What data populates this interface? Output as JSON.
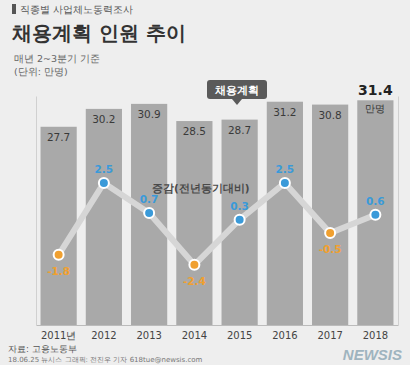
{
  "chart_data": {
    "type": "bar",
    "subtitle": "직종별 사업체노동력조사",
    "title": "채용계획 인원 추이",
    "notes": [
      "매년 2~3분기 기준",
      "(단위: 만명)"
    ],
    "categories": [
      "2011년",
      "2012",
      "2013",
      "2014",
      "2015",
      "2016",
      "2017",
      "2018"
    ],
    "series": [
      {
        "name": "채용계획",
        "type": "bar",
        "color": "#a9a9a9",
        "values": [
          27.7,
          30.2,
          30.9,
          28.5,
          28.7,
          31.2,
          30.8,
          31.4
        ]
      },
      {
        "name": "증감(전년동기대비)",
        "type": "line",
        "axis": "y2",
        "color": "#d6d6d6",
        "marker": "circle",
        "colors": [
          "#f0a030",
          "#3a9ad9",
          "#3a9ad9",
          "#f0a030",
          "#3a9ad9",
          "#3a9ad9",
          "#f0a030",
          "#3a9ad9"
        ],
        "values": [
          -1.8,
          2.5,
          0.7,
          -2.4,
          0.3,
          2.5,
          -0.5,
          0.6
        ]
      }
    ],
    "value_unit": "만명",
    "ylim": [
      0,
      32
    ],
    "yticks": [],
    "y2lim": [
      -6,
      7.7
    ],
    "y2ticks": [],
    "tick_labels": "x",
    "data_labels": true,
    "grid": false,
    "source": "자료: 고용노동부",
    "credit": "18.06.25 뉴시스 그래픽: 전진우 기자 618tue@newsis.com",
    "logo": "NEWSIS"
  }
}
